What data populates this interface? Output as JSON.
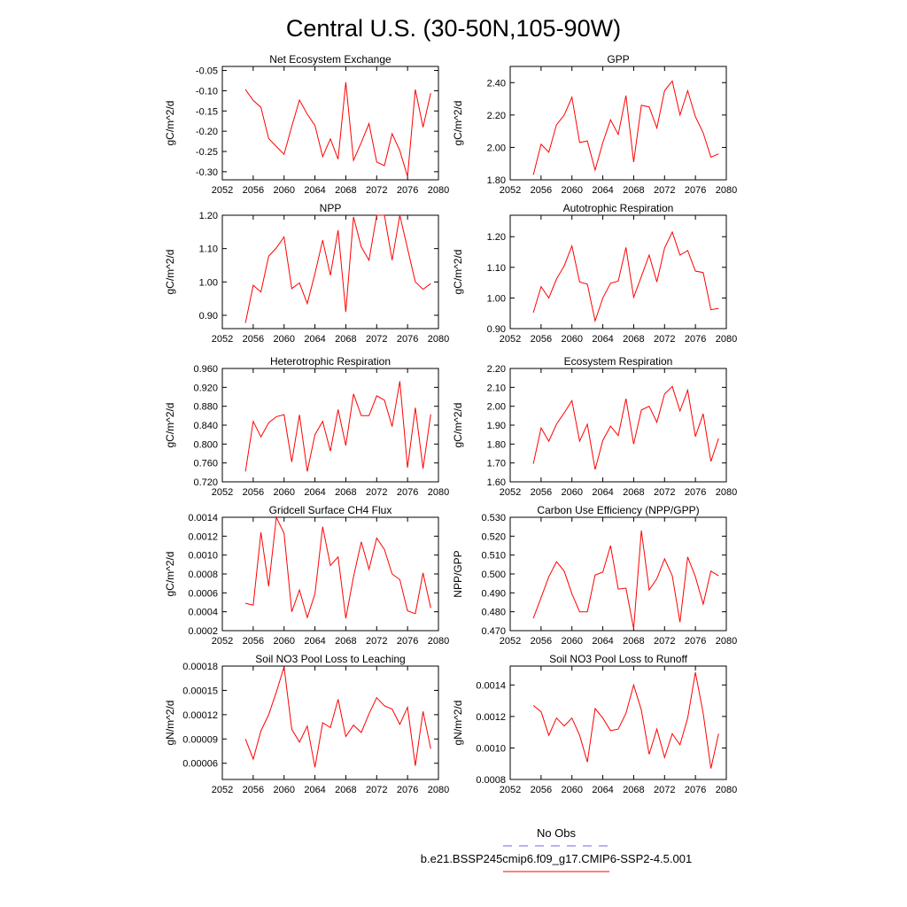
{
  "title": "Central U.S. (30-50N,105-90W)",
  "legend": {
    "obs_label": "No Obs",
    "obs_color": "#6a6ae8",
    "model_label": "b.e21.BSSP245cmip6.f09_g17.CMIP6-SSP2-4.5.001",
    "model_color": "#ff0000"
  },
  "chart_data": [
    {
      "type": "line",
      "title": "Net Ecosystem Exchange",
      "ylabel": "gC/m^2/d",
      "xlim": [
        2052,
        2080
      ],
      "ylim": [
        -0.32,
        -0.04
      ],
      "xticks": [
        2052,
        2056,
        2060,
        2064,
        2068,
        2072,
        2076,
        2080
      ],
      "xtick_labels": [
        "2052",
        "2056",
        "2060",
        "2064",
        "2068",
        "2072",
        "2076",
        "2080"
      ],
      "yticks": [
        -0.3,
        -0.25,
        -0.2,
        -0.15,
        -0.1,
        -0.05
      ],
      "ytick_labels": [
        "-0.30",
        "-0.25",
        "-0.20",
        "-0.15",
        "-0.10",
        "-0.05"
      ],
      "series": [
        {
          "x": [
            2055,
            2056,
            2057,
            2058,
            2059,
            2060,
            2061,
            2062,
            2063,
            2064,
            2065,
            2066,
            2067,
            2068,
            2069,
            2070,
            2071,
            2072,
            2073,
            2074,
            2075,
            2076,
            2077,
            2078,
            2079
          ],
          "values": [
            -0.097,
            -0.124,
            -0.141,
            -0.218,
            -0.238,
            -0.257,
            -0.188,
            -0.123,
            -0.158,
            -0.186,
            -0.263,
            -0.219,
            -0.269,
            -0.079,
            -0.272,
            -0.228,
            -0.181,
            -0.276,
            -0.285,
            -0.206,
            -0.248,
            -0.312,
            -0.097,
            -0.19,
            -0.106
          ]
        }
      ]
    },
    {
      "type": "line",
      "title": "GPP",
      "ylabel": "gC/m^2/d",
      "xlim": [
        2052,
        2080
      ],
      "ylim": [
        1.8,
        2.5
      ],
      "xticks": [
        2052,
        2056,
        2060,
        2064,
        2068,
        2072,
        2076,
        2080
      ],
      "xtick_labels": [
        "2052",
        "2056",
        "2060",
        "2064",
        "2068",
        "2072",
        "2076",
        "2080"
      ],
      "yticks": [
        1.8,
        2.0,
        2.2,
        2.4
      ],
      "ytick_labels": [
        "1.80",
        "2.00",
        "2.20",
        "2.40"
      ],
      "series": [
        {
          "x": [
            2055,
            2056,
            2057,
            2058,
            2059,
            2060,
            2061,
            2062,
            2063,
            2064,
            2065,
            2066,
            2067,
            2068,
            2069,
            2070,
            2071,
            2072,
            2073,
            2074,
            2075,
            2076,
            2077,
            2078,
            2079
          ],
          "values": [
            1.83,
            2.02,
            1.97,
            2.14,
            2.2,
            2.31,
            2.03,
            2.04,
            1.86,
            2.03,
            2.17,
            2.08,
            2.32,
            1.91,
            2.26,
            2.25,
            2.12,
            2.35,
            2.41,
            2.2,
            2.35,
            2.19,
            2.09,
            1.94,
            1.96
          ]
        }
      ]
    },
    {
      "type": "line",
      "title": "NPP",
      "ylabel": "gC/m^2/d",
      "xlim": [
        2052,
        2080
      ],
      "ylim": [
        0.86,
        1.2
      ],
      "xticks": [
        2052,
        2056,
        2060,
        2064,
        2068,
        2072,
        2076,
        2080
      ],
      "xtick_labels": [
        "2052",
        "2056",
        "2060",
        "2064",
        "2068",
        "2072",
        "2076",
        "2080"
      ],
      "yticks": [
        0.9,
        1.0,
        1.1,
        1.2
      ],
      "ytick_labels": [
        "0.90",
        "1.00",
        "1.10",
        "1.20"
      ],
      "series": [
        {
          "x": [
            2055,
            2056,
            2057,
            2058,
            2059,
            2060,
            2061,
            2062,
            2063,
            2064,
            2065,
            2066,
            2067,
            2068,
            2069,
            2070,
            2071,
            2072,
            2073,
            2074,
            2075,
            2076,
            2077,
            2078,
            2079
          ],
          "values": [
            0.877,
            0.99,
            0.97,
            1.077,
            1.102,
            1.135,
            0.98,
            0.997,
            0.935,
            1.025,
            1.125,
            1.02,
            1.155,
            0.91,
            1.195,
            1.105,
            1.065,
            1.2,
            1.2,
            1.065,
            1.2,
            1.1,
            1.0,
            0.978,
            0.995
          ]
        }
      ]
    },
    {
      "type": "line",
      "title": "Autotrophic Respiration",
      "ylabel": "gC/m^2/d",
      "xlim": [
        2052,
        2080
      ],
      "ylim": [
        0.9,
        1.27
      ],
      "xticks": [
        2052,
        2056,
        2060,
        2064,
        2068,
        2072,
        2076,
        2080
      ],
      "xtick_labels": [
        "2052",
        "2056",
        "2060",
        "2064",
        "2068",
        "2072",
        "2076",
        "2080"
      ],
      "yticks": [
        0.9,
        1.0,
        1.1,
        1.2
      ],
      "ytick_labels": [
        "0.90",
        "1.00",
        "1.10",
        "1.20"
      ],
      "series": [
        {
          "x": [
            2055,
            2056,
            2057,
            2058,
            2059,
            2060,
            2061,
            2062,
            2063,
            2064,
            2065,
            2066,
            2067,
            2068,
            2069,
            2070,
            2071,
            2072,
            2073,
            2074,
            2075,
            2076,
            2077,
            2078,
            2079
          ],
          "values": [
            0.952,
            1.037,
            1.0,
            1.062,
            1.105,
            1.17,
            1.052,
            1.045,
            0.925,
            1.0,
            1.048,
            1.055,
            1.165,
            1.002,
            1.07,
            1.14,
            1.052,
            1.163,
            1.215,
            1.14,
            1.155,
            1.088,
            1.083,
            0.962,
            0.966
          ]
        }
      ]
    },
    {
      "type": "line",
      "title": "Heterotrophic Respiration",
      "ylabel": "gC/m^2/d",
      "xlim": [
        2052,
        2080
      ],
      "ylim": [
        0.72,
        0.96
      ],
      "xticks": [
        2052,
        2056,
        2060,
        2064,
        2068,
        2072,
        2076,
        2080
      ],
      "xtick_labels": [
        "2052",
        "2056",
        "2060",
        "2064",
        "2068",
        "2072",
        "2076",
        "2080"
      ],
      "yticks": [
        0.72,
        0.76,
        0.8,
        0.84,
        0.88,
        0.92,
        0.96
      ],
      "ytick_labels": [
        "0.720",
        "0.760",
        "0.800",
        "0.840",
        "0.880",
        "0.920",
        "0.960"
      ],
      "series": [
        {
          "x": [
            2055,
            2056,
            2057,
            2058,
            2059,
            2060,
            2061,
            2062,
            2063,
            2064,
            2065,
            2066,
            2067,
            2068,
            2069,
            2070,
            2071,
            2072,
            2073,
            2074,
            2075,
            2076,
            2077,
            2078,
            2079
          ],
          "values": [
            0.742,
            0.848,
            0.815,
            0.845,
            0.858,
            0.862,
            0.762,
            0.862,
            0.742,
            0.82,
            0.848,
            0.785,
            0.873,
            0.797,
            0.906,
            0.86,
            0.86,
            0.902,
            0.893,
            0.837,
            0.933,
            0.75,
            0.877,
            0.748,
            0.863
          ]
        }
      ]
    },
    {
      "type": "line",
      "title": "Ecosystem Respiration",
      "ylabel": "gC/m^2/d",
      "xlim": [
        2052,
        2080
      ],
      "ylim": [
        1.6,
        2.2
      ],
      "xticks": [
        2052,
        2056,
        2060,
        2064,
        2068,
        2072,
        2076,
        2080
      ],
      "xtick_labels": [
        "2052",
        "2056",
        "2060",
        "2064",
        "2068",
        "2072",
        "2076",
        "2080"
      ],
      "yticks": [
        1.6,
        1.7,
        1.8,
        1.9,
        2.0,
        2.1,
        2.2
      ],
      "ytick_labels": [
        "1.60",
        "1.70",
        "1.80",
        "1.90",
        "2.00",
        "2.10",
        "2.20"
      ],
      "series": [
        {
          "x": [
            2055,
            2056,
            2057,
            2058,
            2059,
            2060,
            2061,
            2062,
            2063,
            2064,
            2065,
            2066,
            2067,
            2068,
            2069,
            2070,
            2071,
            2072,
            2073,
            2074,
            2075,
            2076,
            2077,
            2078,
            2079
          ],
          "values": [
            1.695,
            1.885,
            1.815,
            1.905,
            1.965,
            2.03,
            1.815,
            1.905,
            1.665,
            1.82,
            1.895,
            1.845,
            2.04,
            1.8,
            1.98,
            2.0,
            1.915,
            2.065,
            2.105,
            1.975,
            2.085,
            1.84,
            1.96,
            1.708,
            1.83
          ]
        }
      ]
    },
    {
      "type": "line",
      "title": "Gridcell Surface CH4 Flux",
      "ylabel": "gC/m^2/d",
      "xlim": [
        2052,
        2080
      ],
      "ylim": [
        0.0002,
        0.0014
      ],
      "xticks": [
        2052,
        2056,
        2060,
        2064,
        2068,
        2072,
        2076,
        2080
      ],
      "xtick_labels": [
        "2052",
        "2056",
        "2060",
        "2064",
        "2068",
        "2072",
        "2076",
        "2080"
      ],
      "yticks": [
        0.0002,
        0.0004,
        0.0006,
        0.0008,
        0.001,
        0.0012,
        0.0014
      ],
      "ytick_labels": [
        "0.0002",
        "0.0004",
        "0.0006",
        "0.0008",
        "0.0010",
        "0.0012",
        "0.0014"
      ],
      "series": [
        {
          "x": [
            2055,
            2056,
            2057,
            2058,
            2059,
            2060,
            2061,
            2062,
            2063,
            2064,
            2065,
            2066,
            2067,
            2068,
            2069,
            2070,
            2071,
            2072,
            2073,
            2074,
            2075,
            2076,
            2077,
            2078,
            2079
          ],
          "values": [
            0.00049,
            0.00047,
            0.00124,
            0.00067,
            0.0014,
            0.00123,
            0.0004,
            0.00063,
            0.00034,
            0.00059,
            0.0013,
            0.00089,
            0.00098,
            0.00033,
            0.00077,
            0.00114,
            0.00085,
            0.00118,
            0.00106,
            0.0008,
            0.00074,
            0.00041,
            0.00038,
            0.00081,
            0.00044
          ]
        }
      ]
    },
    {
      "type": "line",
      "title": "Carbon Use Efficiency (NPP/GPP)",
      "ylabel": "NPP/GPP",
      "xlim": [
        2052,
        2080
      ],
      "ylim": [
        0.47,
        0.53
      ],
      "xticks": [
        2052,
        2056,
        2060,
        2064,
        2068,
        2072,
        2076,
        2080
      ],
      "xtick_labels": [
        "2052",
        "2056",
        "2060",
        "2064",
        "2068",
        "2072",
        "2076",
        "2080"
      ],
      "yticks": [
        0.47,
        0.48,
        0.49,
        0.5,
        0.51,
        0.52,
        0.53
      ],
      "ytick_labels": [
        "0.470",
        "0.480",
        "0.490",
        "0.500",
        "0.510",
        "0.520",
        "0.530"
      ],
      "series": [
        {
          "x": [
            2055,
            2056,
            2057,
            2058,
            2059,
            2060,
            2061,
            2062,
            2063,
            2064,
            2065,
            2066,
            2067,
            2068,
            2069,
            2070,
            2071,
            2072,
            2073,
            2074,
            2075,
            2076,
            2077,
            2078,
            2079
          ],
          "values": [
            0.4765,
            0.4875,
            0.4985,
            0.5065,
            0.5015,
            0.4895,
            0.48,
            0.48,
            0.4995,
            0.501,
            0.515,
            0.492,
            0.4925,
            0.471,
            0.523,
            0.4915,
            0.4975,
            0.508,
            0.499,
            0.4745,
            0.509,
            0.4985,
            0.484,
            0.5015,
            0.499
          ]
        }
      ]
    },
    {
      "type": "line",
      "title": "Soil NO3 Pool Loss to Leaching",
      "ylabel": "gN/m^2/d",
      "xlim": [
        2052,
        2080
      ],
      "ylim": [
        4e-05,
        0.00018
      ],
      "xticks": [
        2052,
        2056,
        2060,
        2064,
        2068,
        2072,
        2076,
        2080
      ],
      "xtick_labels": [
        "2052",
        "2056",
        "2060",
        "2064",
        "2068",
        "2072",
        "2076",
        "2080"
      ],
      "yticks": [
        6e-05,
        9e-05,
        0.00012,
        0.00015,
        0.00018
      ],
      "ytick_labels": [
        "0.00006",
        "0.00009",
        "0.00012",
        "0.00015",
        "0.00018"
      ],
      "series": [
        {
          "x": [
            2055,
            2056,
            2057,
            2058,
            2059,
            2060,
            2061,
            2062,
            2063,
            2064,
            2065,
            2066,
            2067,
            2068,
            2069,
            2070,
            2071,
            2072,
            2073,
            2074,
            2075,
            2076,
            2077,
            2078,
            2079
          ],
          "values": [
            9e-05,
            6.5e-05,
            0.0001,
            0.00012,
            0.000148,
            0.000179,
            0.000102,
            8.6e-05,
            0.000106,
            5.5e-05,
            0.00011,
            0.000104,
            0.000139,
            9.3e-05,
            0.000107,
            9.8e-05,
            0.000121,
            0.000141,
            0.000131,
            0.000127,
            0.000108,
            0.000129,
            5.7e-05,
            0.000124,
            7.8e-05
          ]
        }
      ]
    },
    {
      "type": "line",
      "title": "Soil NO3 Pool Loss to Runoff",
      "ylabel": "gN/m^2/d",
      "xlim": [
        2052,
        2080
      ],
      "ylim": [
        0.0008,
        0.00152
      ],
      "xticks": [
        2052,
        2056,
        2060,
        2064,
        2068,
        2072,
        2076,
        2080
      ],
      "xtick_labels": [
        "2052",
        "2056",
        "2060",
        "2064",
        "2068",
        "2072",
        "2076",
        "2080"
      ],
      "yticks": [
        0.0008,
        0.001,
        0.0012,
        0.0014
      ],
      "ytick_labels": [
        "0.0008",
        "0.0010",
        "0.0012",
        "0.0014"
      ],
      "series": [
        {
          "x": [
            2055,
            2056,
            2057,
            2058,
            2059,
            2060,
            2061,
            2062,
            2063,
            2064,
            2065,
            2066,
            2067,
            2068,
            2069,
            2070,
            2071,
            2072,
            2073,
            2074,
            2075,
            2076,
            2077,
            2078,
            2079
          ],
          "values": [
            0.00127,
            0.00123,
            0.00108,
            0.00119,
            0.00114,
            0.00119,
            0.00108,
            0.00091,
            0.00125,
            0.00119,
            0.00111,
            0.00112,
            0.00122,
            0.0014,
            0.00124,
            0.00096,
            0.00112,
            0.00094,
            0.00109,
            0.00102,
            0.00119,
            0.00148,
            0.00122,
            0.00087,
            0.00109
          ]
        }
      ]
    }
  ]
}
